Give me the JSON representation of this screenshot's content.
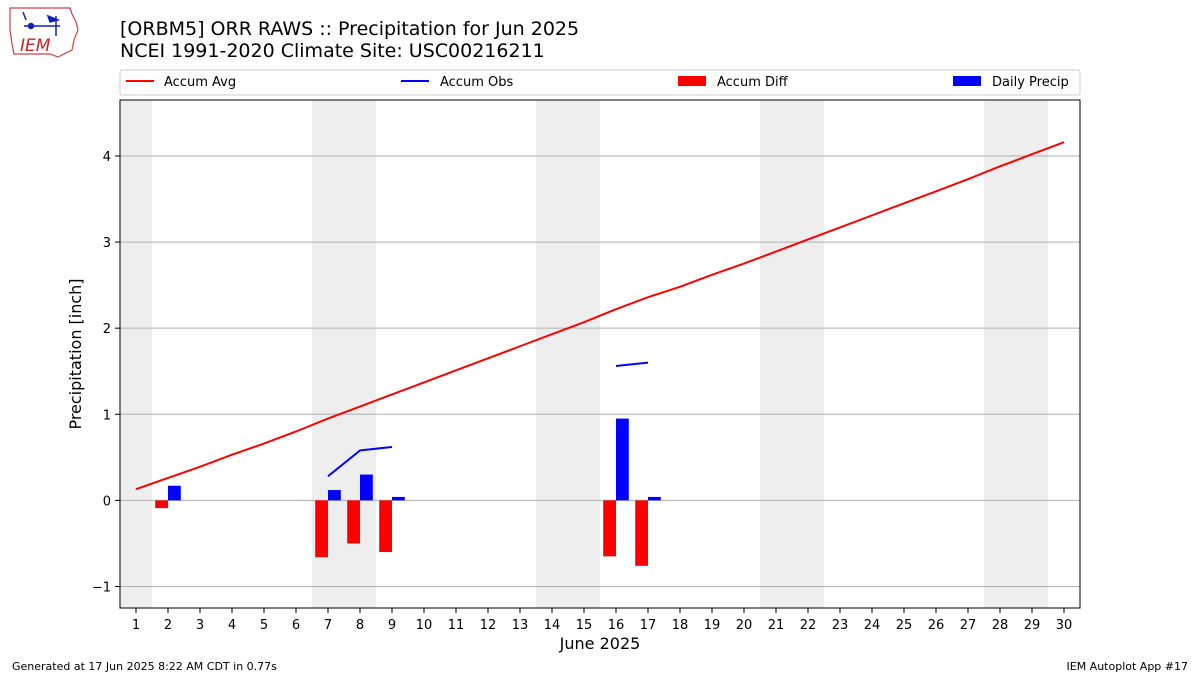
{
  "header": {
    "title_line1": "[ORBM5] ORR RAWS :: Precipitation for Jun 2025",
    "title_line2": "NCEI 1991-2020 Climate Site: USC00216211",
    "logo_text": "IEM"
  },
  "footer": {
    "generated": "Generated at 17 Jun 2025 8:22 AM CDT in 0.77s",
    "app": "IEM Autoplot App #17"
  },
  "colors": {
    "avg": "#ff0000",
    "obs": "#0000ff",
    "diff": "#ff0000",
    "daily": "#0000ff",
    "weekend_shade": "#eeeeee",
    "grid": "#b0b0b0"
  },
  "chart_data": {
    "type": "bar",
    "xlabel": "June 2025",
    "ylabel": "Precipitation [inch]",
    "xlim": [
      0.5,
      30.5
    ],
    "ylim": [
      -1.25,
      4.65
    ],
    "x_ticks": [
      1,
      2,
      3,
      4,
      5,
      6,
      7,
      8,
      9,
      10,
      11,
      12,
      13,
      14,
      15,
      16,
      17,
      18,
      19,
      20,
      21,
      22,
      23,
      24,
      25,
      26,
      27,
      28,
      29,
      30
    ],
    "y_ticks": [
      -1,
      0,
      1,
      2,
      3,
      4
    ],
    "grid": "horizontal",
    "legend_position": "top",
    "legend": [
      "Accum Avg",
      "Accum Obs",
      "Accum Diff",
      "Daily Precip"
    ],
    "weekend_spans": [
      [
        0.5,
        1.5
      ],
      [
        6.5,
        8.5
      ],
      [
        13.5,
        15.5
      ],
      [
        20.5,
        22.5
      ],
      [
        27.5,
        29.5
      ]
    ],
    "accum_avg": {
      "name": "Accum Avg",
      "x": [
        1,
        2,
        3,
        4,
        5,
        6,
        7,
        8,
        9,
        10,
        11,
        12,
        13,
        14,
        15,
        16,
        17,
        18,
        19,
        20,
        21,
        22,
        23,
        24,
        25,
        26,
        27,
        28,
        29,
        30
      ],
      "values": [
        0.13,
        0.26,
        0.39,
        0.53,
        0.66,
        0.8,
        0.95,
        1.09,
        1.23,
        1.37,
        1.51,
        1.65,
        1.79,
        1.93,
        2.07,
        2.22,
        2.36,
        2.48,
        2.62,
        2.75,
        2.89,
        3.03,
        3.17,
        3.31,
        3.45,
        3.59,
        3.73,
        3.88,
        4.02,
        4.16
      ]
    },
    "accum_obs": {
      "name": "Accum Obs",
      "segments": [
        {
          "x": [
            7,
            8,
            9
          ],
          "values": [
            0.28,
            0.58,
            0.62
          ]
        },
        {
          "x": [
            16,
            17
          ],
          "values": [
            1.56,
            1.6
          ]
        }
      ]
    },
    "accum_diff": {
      "name": "Accum Diff",
      "x": [
        2,
        7,
        8,
        9,
        16,
        17
      ],
      "values": [
        -0.09,
        -0.66,
        -0.5,
        -0.6,
        -0.65,
        -0.76
      ]
    },
    "daily_precip": {
      "name": "Daily Precip",
      "x": [
        2,
        7,
        8,
        9,
        16,
        17
      ],
      "values": [
        0.17,
        0.12,
        0.3,
        0.04,
        0.95,
        0.04
      ]
    }
  }
}
